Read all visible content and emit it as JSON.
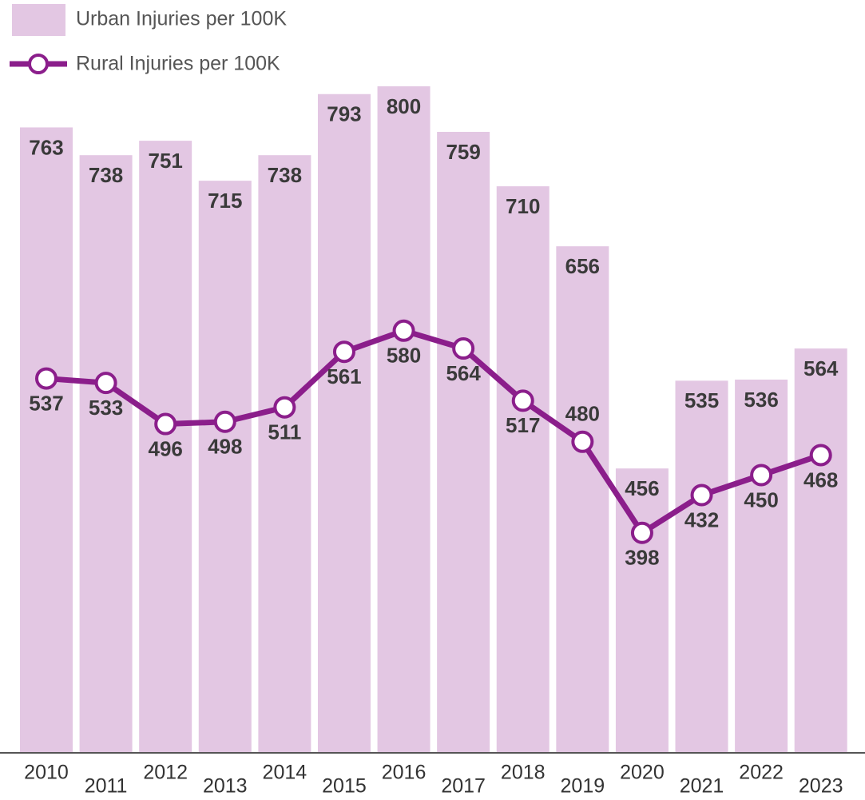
{
  "chart_data": {
    "type": "bar_line",
    "categories": [
      "2010",
      "2011",
      "2012",
      "2013",
      "2014",
      "2015",
      "2016",
      "2017",
      "2018",
      "2019",
      "2020",
      "2021",
      "2022",
      "2023"
    ],
    "series": [
      {
        "name": "Urban Injuries per 100K",
        "color": "#e3c7e3",
        "type": "bar",
        "values": [
          763,
          738,
          751,
          715,
          738,
          793,
          800,
          759,
          710,
          656,
          456,
          535,
          536,
          564
        ]
      },
      {
        "name": "Rural Injuries per 100K",
        "color": "#8b1e8b",
        "type": "line",
        "values": [
          537,
          533,
          496,
          498,
          511,
          561,
          580,
          564,
          517,
          480,
          398,
          432,
          450,
          468
        ]
      }
    ],
    "ylim": [
      200,
      800
    ]
  }
}
